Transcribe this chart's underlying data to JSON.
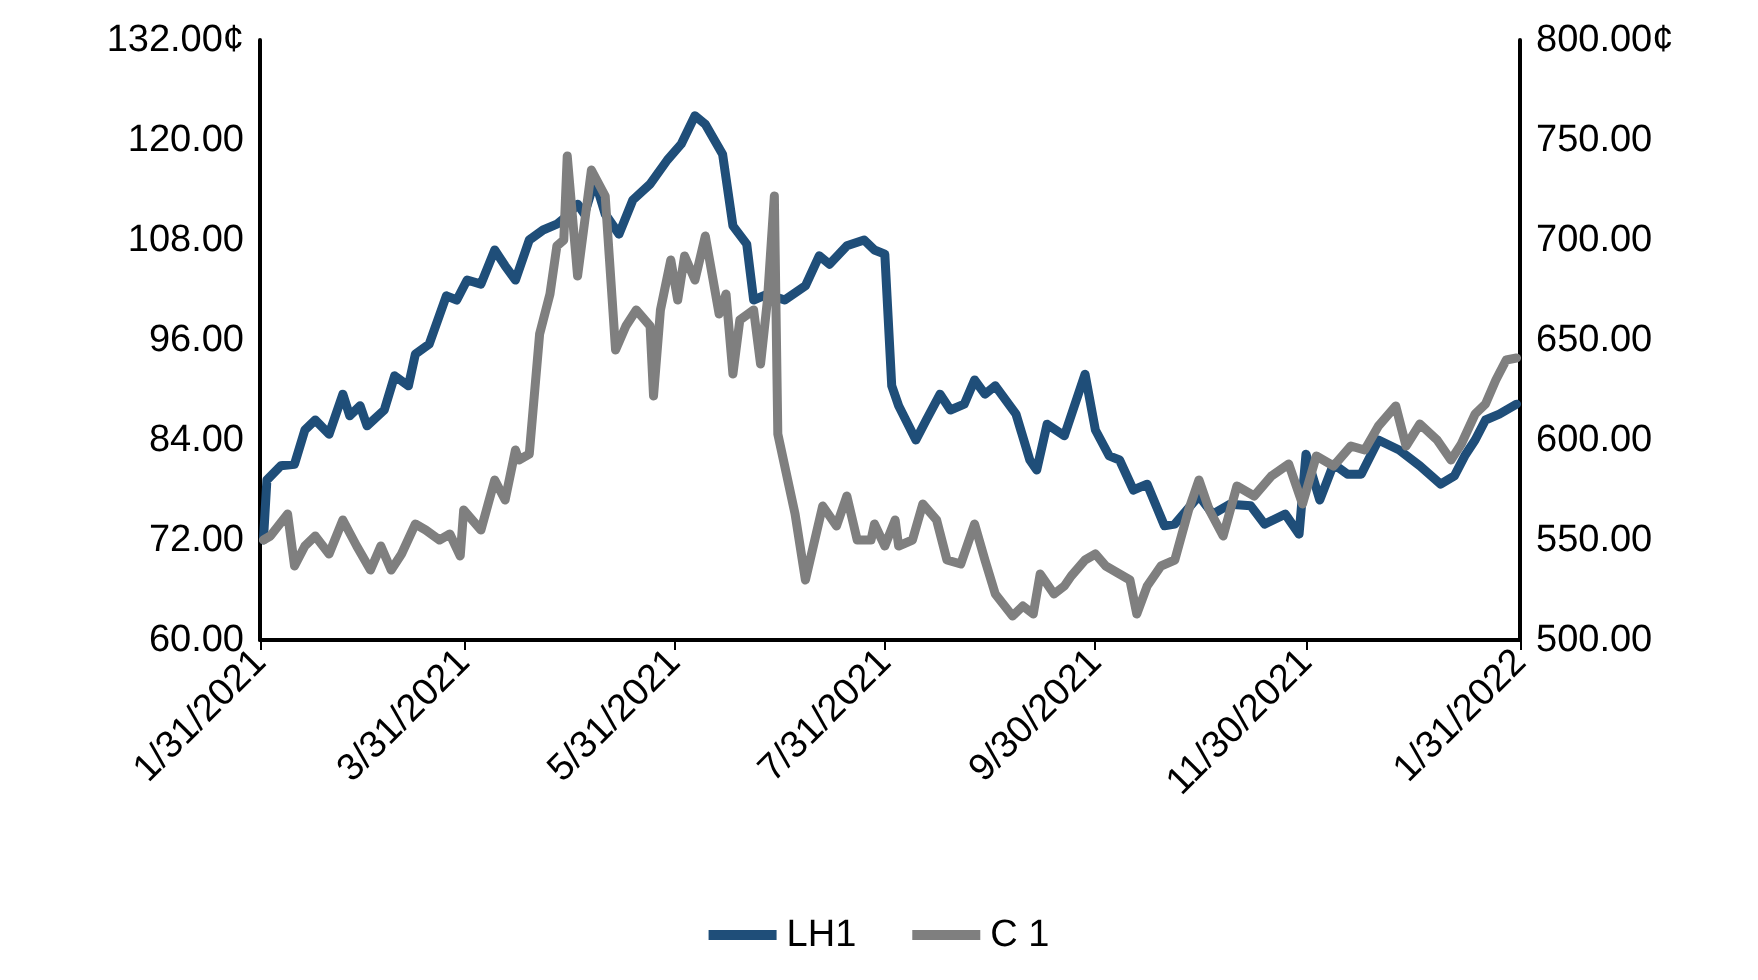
{
  "chart_data": {
    "type": "line",
    "legend": "bottom",
    "grid": false,
    "marker": "none",
    "line_style": "solid",
    "xlim": [
      "2021-01-31",
      "2022-01-31"
    ],
    "xticks": [
      {
        "value": "2021-01-31",
        "label": "1/31/2021"
      },
      {
        "value": "2021-03-31",
        "label": "3/31/2021"
      },
      {
        "value": "2021-05-31",
        "label": "5/31/2021"
      },
      {
        "value": "2021-07-31",
        "label": "7/31/2021"
      },
      {
        "value": "2021-09-30",
        "label": "9/30/2021"
      },
      {
        "value": "2021-11-30",
        "label": "11/30/2021"
      },
      {
        "value": "2022-01-31",
        "label": "1/31/2022"
      }
    ],
    "ylim": [
      60,
      132
    ],
    "yticks": [
      {
        "value": 60,
        "label": "60.00"
      },
      {
        "value": 72,
        "label": "72.00"
      },
      {
        "value": 84,
        "label": "84.00"
      },
      {
        "value": 96,
        "label": "96.00"
      },
      {
        "value": 108,
        "label": "108.00"
      },
      {
        "value": 120,
        "label": "120.00"
      },
      {
        "value": 132,
        "label": "132.00¢"
      }
    ],
    "y2lim": [
      500,
      800
    ],
    "y2ticks": [
      {
        "value": 500,
        "label": "500.00"
      },
      {
        "value": 550,
        "label": "550.00"
      },
      {
        "value": 600,
        "label": "600.00"
      },
      {
        "value": 650,
        "label": "650.00"
      },
      {
        "value": 700,
        "label": "700.00"
      },
      {
        "value": 750,
        "label": "750.00"
      },
      {
        "value": 800,
        "label": "800.00¢"
      }
    ],
    "series": [
      {
        "name": "LH1",
        "color": "#1f4e79",
        "x": [
          "2021-02-01",
          "2021-02-02",
          "2021-02-06",
          "2021-02-10",
          "2021-02-13",
          "2021-02-16",
          "2021-02-20",
          "2021-02-24",
          "2021-02-26",
          "2021-03-01",
          "2021-03-03",
          "2021-03-08",
          "2021-03-11",
          "2021-03-15",
          "2021-03-17",
          "2021-03-21",
          "2021-03-26",
          "2021-03-29",
          "2021-04-01",
          "2021-04-05",
          "2021-04-09",
          "2021-04-12",
          "2021-04-15",
          "2021-04-19",
          "2021-04-23",
          "2021-04-27",
          "2021-04-30",
          "2021-05-03",
          "2021-05-05",
          "2021-05-08",
          "2021-05-11",
          "2021-05-15",
          "2021-05-19",
          "2021-05-24",
          "2021-05-29",
          "2021-06-02",
          "2021-06-04",
          "2021-06-06",
          "2021-06-09",
          "2021-06-14",
          "2021-06-17",
          "2021-06-21",
          "2021-06-23",
          "2021-06-27",
          "2021-07-02",
          "2021-07-08",
          "2021-07-12",
          "2021-07-15",
          "2021-07-20",
          "2021-07-25",
          "2021-07-28",
          "2021-07-31",
          "2021-08-02",
          "2021-08-04",
          "2021-08-09",
          "2021-08-12",
          "2021-08-16",
          "2021-08-19",
          "2021-08-23",
          "2021-08-26",
          "2021-08-29",
          "2021-09-01",
          "2021-09-07",
          "2021-09-11",
          "2021-09-13",
          "2021-09-16",
          "2021-09-21",
          "2021-09-27",
          "2021-09-30",
          "2021-10-04",
          "2021-10-07",
          "2021-10-11",
          "2021-10-15",
          "2021-10-20",
          "2021-10-23",
          "2021-10-30",
          "2021-11-03",
          "2021-11-08",
          "2021-11-14",
          "2021-11-18",
          "2021-11-24",
          "2021-11-28",
          "2021-11-30",
          "2021-12-04",
          "2021-12-08",
          "2021-12-12",
          "2021-12-16",
          "2021-12-21",
          "2021-12-27",
          "2022-01-02",
          "2022-01-08",
          "2022-01-12",
          "2022-01-15",
          "2022-01-18",
          "2022-01-21",
          "2022-01-25",
          "2022-01-30"
        ],
        "values": [
          72,
          79.2,
          80.9,
          81.1,
          85.2,
          86.4,
          84.7,
          89.5,
          86.9,
          88.1,
          85.7,
          87.6,
          91.7,
          90.5,
          94.3,
          95.5,
          101.3,
          100.8,
          103.2,
          102.7,
          106.8,
          104.9,
          103.2,
          108,
          109.2,
          109.9,
          110.9,
          112.3,
          111.1,
          115.2,
          111.1,
          108.7,
          112.8,
          114.7,
          117.6,
          119.5,
          121.2,
          122.9,
          121.9,
          118.3,
          109.7,
          107.5,
          100.8,
          101.5,
          100.8,
          102.5,
          106.1,
          105.1,
          107.3,
          108,
          106.8,
          106.3,
          90.5,
          88.1,
          84,
          86.4,
          89.5,
          87.6,
          88.3,
          91.2,
          89.5,
          90.5,
          87.1,
          81.6,
          80.4,
          85.9,
          84.5,
          91.9,
          85.2,
          82.1,
          81.6,
          78,
          78.7,
          73.7,
          73.9,
          77.3,
          75.1,
          76.3,
          76.1,
          73.9,
          75.1,
          72.7,
          82.3,
          76.8,
          81.1,
          79.9,
          79.9,
          84,
          82.8,
          80.9,
          78.7,
          79.7,
          82.1,
          84,
          86.4,
          87.1,
          88.3
        ]
      },
      {
        "name": "C 1",
        "color": "#7f7f7f",
        "axis": "y2",
        "x": [
          "2021-02-01",
          "2021-02-03",
          "2021-02-08",
          "2021-02-10",
          "2021-02-13",
          "2021-02-16",
          "2021-02-20",
          "2021-02-24",
          "2021-02-28",
          "2021-03-04",
          "2021-03-07",
          "2021-03-10",
          "2021-03-13",
          "2021-03-17",
          "2021-03-20",
          "2021-03-24",
          "2021-03-27",
          "2021-03-30",
          "2021-03-31",
          "2021-04-05",
          "2021-04-09",
          "2021-04-12",
          "2021-04-15",
          "2021-04-16",
          "2021-04-19",
          "2021-04-22",
          "2021-04-25",
          "2021-04-27",
          "2021-04-29",
          "2021-04-30",
          "2021-05-03",
          "2021-05-07",
          "2021-05-11",
          "2021-05-14",
          "2021-05-17",
          "2021-05-20",
          "2021-05-24",
          "2021-05-25",
          "2021-05-27",
          "2021-05-30",
          "2021-06-01",
          "2021-06-03",
          "2021-06-06",
          "2021-06-09",
          "2021-06-13",
          "2021-06-15",
          "2021-06-17",
          "2021-06-19",
          "2021-06-23",
          "2021-06-25",
          "2021-06-27",
          "2021-06-29",
          "2021-06-30",
          "2021-07-05",
          "2021-07-08",
          "2021-07-13",
          "2021-07-17",
          "2021-07-20",
          "2021-07-23",
          "2021-07-27",
          "2021-07-28",
          "2021-07-31",
          "2021-08-03",
          "2021-08-04",
          "2021-08-08",
          "2021-08-11",
          "2021-08-15",
          "2021-08-18",
          "2021-08-22",
          "2021-08-26",
          "2021-08-29",
          "2021-09-01",
          "2021-09-06",
          "2021-09-09",
          "2021-09-12",
          "2021-09-14",
          "2021-09-18",
          "2021-09-21",
          "2021-09-23",
          "2021-09-27",
          "2021-09-30",
          "2021-10-03",
          "2021-10-07",
          "2021-10-10",
          "2021-10-12",
          "2021-10-15",
          "2021-10-19",
          "2021-10-23",
          "2021-10-27",
          "2021-10-30",
          "2021-11-02",
          "2021-11-06",
          "2021-11-10",
          "2021-11-15",
          "2021-11-20",
          "2021-11-25",
          "2021-11-29",
          "2021-12-03",
          "2021-12-08",
          "2021-12-13",
          "2021-12-17",
          "2021-12-21",
          "2021-12-26",
          "2021-12-29",
          "2022-01-02",
          "2022-01-07",
          "2022-01-11",
          "2022-01-14",
          "2022-01-18",
          "2022-01-21",
          "2022-01-24",
          "2022-01-27",
          "2022-01-30"
        ],
        "values": [
          550,
          552,
          563,
          537,
          547,
          552,
          543,
          560,
          547,
          535,
          547,
          535,
          543,
          558,
          555,
          550,
          553,
          542,
          565,
          555,
          580,
          570,
          595,
          590,
          593,
          653,
          673,
          697,
          700,
          742,
          682,
          735,
          722,
          645,
          657,
          665,
          657,
          622,
          665,
          690,
          670,
          692,
          680,
          702,
          663,
          673,
          633,
          660,
          665,
          638,
          670,
          722,
          603,
          563,
          530,
          567,
          557,
          572,
          550,
          550,
          558,
          547,
          560,
          547,
          550,
          568,
          560,
          540,
          538,
          558,
          540,
          523,
          512,
          517,
          513,
          533,
          523,
          527,
          532,
          540,
          543,
          537,
          533,
          530,
          513,
          527,
          537,
          540,
          565,
          580,
          565,
          552,
          577,
          572,
          582,
          588,
          568,
          592,
          587,
          597,
          595,
          607,
          617,
          597,
          608,
          600,
          590,
          598,
          613,
          618,
          630,
          640,
          641
        ]
      }
    ]
  }
}
